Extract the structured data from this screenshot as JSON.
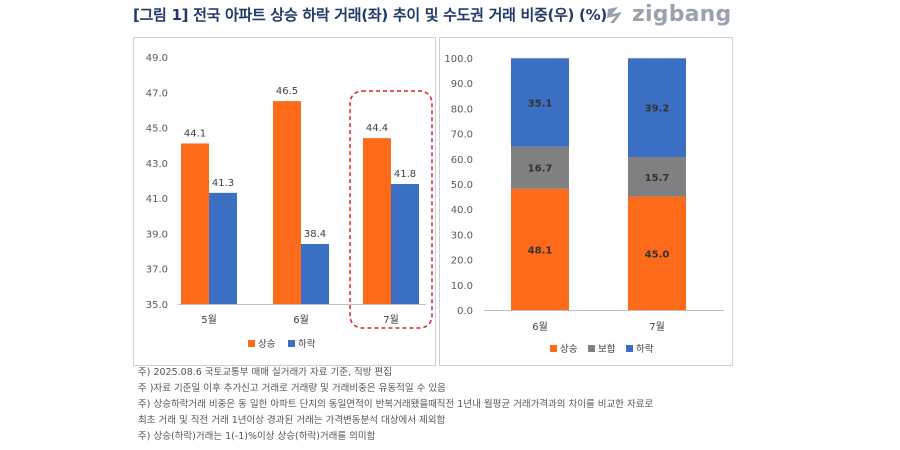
{
  "title": "[그림 1] 전국 아파트 상승 하락 거래(좌) 추이 및 수도권 거래 비중(우) (%)",
  "brand": {
    "name": "zigbang",
    "color": "#9aa3ad"
  },
  "chart_data": [
    {
      "type": "bar",
      "categories": [
        "5월",
        "6월",
        "7월"
      ],
      "series": [
        {
          "name": "상승",
          "values": [
            44.1,
            46.5,
            44.4
          ],
          "color": "#fd6a1a"
        },
        {
          "name": "하락",
          "values": [
            41.3,
            38.4,
            41.8
          ],
          "color": "#3b6fc4"
        }
      ],
      "ylim": [
        35.0,
        49.0
      ],
      "yticks": [
        "35.0",
        "37.0",
        "39.0",
        "41.0",
        "43.0",
        "45.0",
        "47.0",
        "49.0"
      ],
      "data_labels": true,
      "highlight": {
        "category": "7월",
        "style": "dashed-rounded-box",
        "color": "#e0202a"
      },
      "legend": "bottom",
      "grid": false
    },
    {
      "type": "stacked-bar",
      "categories": [
        "6월",
        "7월"
      ],
      "series": [
        {
          "name": "상승",
          "values": [
            48.1,
            45.0
          ],
          "color": "#fd6a1a"
        },
        {
          "name": "보합",
          "values": [
            16.7,
            15.7
          ],
          "color": "#808080"
        },
        {
          "name": "하락",
          "values": [
            35.1,
            39.2
          ],
          "color": "#3b6fc4"
        }
      ],
      "ylim": [
        0.0,
        100.0
      ],
      "yticks": [
        "0.0",
        "10.0",
        "20.0",
        "30.0",
        "40.0",
        "50.0",
        "60.0",
        "70.0",
        "80.0",
        "90.0",
        "100.0"
      ],
      "data_labels": true,
      "legend": "bottom",
      "grid": false
    }
  ],
  "notes": [
    "주) 2025.08.6   국토교통부 매매 실거래가 자료 기준, 직방 편집",
    "주 )자료 기준일 이후 추가신고 거래로 거래량 및 거래비중은 유동적일 수 있음",
    "주) 상승하락거래 비중은 동 일한 아파트 단지의 동일면적이 반복거래됐을때직전 1년내 월평균 거래가격과의 차이를 비교한 자료로",
    "최초 거래 및 직전 거래 1년이상 경과된 거래는 가격변동분석 대상에서 제외함",
    "주) 상승(하락)거래는 1(-1)%이상 상승(하락)거래를 의미함"
  ]
}
